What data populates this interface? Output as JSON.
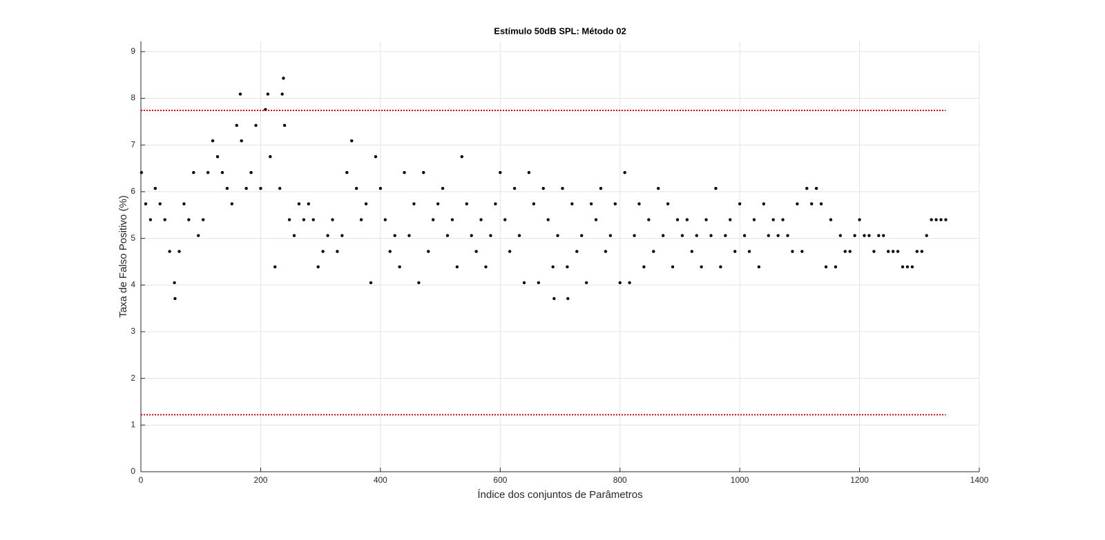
{
  "chart_data": {
    "type": "scatter",
    "title": "Estímulo 50dB SPL: Método 02",
    "xlabel": "Índice dos conjuntos de Parâmetros",
    "ylabel": "Taxa de Falso Positivo (%)",
    "xlim": [
      0,
      1400
    ],
    "ylim": [
      0,
      9.22
    ],
    "xticks": [
      0,
      200,
      400,
      600,
      800,
      1000,
      1200,
      1400
    ],
    "yticks": [
      0,
      1,
      2,
      3,
      4,
      5,
      6,
      7,
      8,
      9
    ],
    "grid": true,
    "color": "#000000",
    "x": [
      1,
      8,
      16,
      24,
      32,
      40,
      48,
      56,
      57,
      64,
      72,
      80,
      88,
      96,
      104,
      112,
      120,
      128,
      136,
      144,
      152,
      160,
      166,
      168,
      176,
      184,
      192,
      200,
      208,
      212,
      216,
      224,
      232,
      236,
      238,
      240,
      248,
      256,
      264,
      272,
      280,
      288,
      296,
      304,
      312,
      320,
      328,
      336,
      344,
      352,
      360,
      368,
      376,
      384,
      392,
      400,
      408,
      416,
      424,
      432,
      440,
      448,
      456,
      464,
      472,
      480,
      488,
      496,
      504,
      512,
      520,
      528,
      536,
      544,
      552,
      560,
      568,
      576,
      584,
      592,
      600,
      608,
      616,
      624,
      632,
      640,
      648,
      656,
      664,
      672,
      680,
      688,
      690,
      696,
      704,
      712,
      713,
      720,
      728,
      736,
      744,
      752,
      760,
      768,
      776,
      784,
      792,
      800,
      808,
      816,
      824,
      832,
      840,
      848,
      856,
      864,
      872,
      880,
      888,
      896,
      904,
      912,
      920,
      928,
      936,
      944,
      952,
      960,
      968,
      976,
      984,
      992,
      1000,
      1008,
      1016,
      1024,
      1032,
      1040,
      1048,
      1056,
      1064,
      1072,
      1080,
      1088,
      1096,
      1104,
      1112,
      1120,
      1128,
      1136,
      1144,
      1152,
      1160,
      1168,
      1176,
      1184,
      1192,
      1200,
      1208,
      1216,
      1224,
      1232,
      1240,
      1248,
      1256,
      1264,
      1272,
      1280,
      1288,
      1296,
      1304,
      1312,
      1320,
      1328,
      1336,
      1344
    ],
    "values": [
      6.41,
      5.74,
      5.4,
      6.07,
      5.74,
      5.4,
      4.72,
      4.05,
      3.71,
      4.72,
      5.74,
      5.4,
      6.41,
      5.06,
      5.4,
      6.41,
      7.09,
      6.75,
      6.41,
      6.07,
      5.74,
      7.42,
      8.09,
      7.09,
      6.07,
      6.41,
      7.42,
      6.07,
      7.76,
      8.09,
      6.75,
      4.39,
      6.07,
      8.09,
      8.43,
      7.42,
      5.4,
      5.06,
      5.74,
      5.4,
      5.74,
      5.4,
      4.39,
      4.72,
      5.06,
      5.4,
      4.72,
      5.06,
      6.41,
      7.09,
      6.07,
      5.4,
      5.74,
      4.05,
      6.75,
      6.07,
      5.4,
      4.72,
      5.06,
      4.39,
      6.41,
      5.06,
      5.74,
      4.05,
      6.41,
      4.72,
      5.4,
      5.74,
      6.07,
      5.06,
      5.4,
      4.39,
      6.75,
      5.74,
      5.06,
      4.72,
      5.4,
      4.39,
      5.06,
      5.74,
      6.41,
      5.4,
      4.72,
      6.07,
      5.06,
      4.05,
      6.41,
      5.74,
      4.05,
      6.07,
      5.4,
      4.39,
      3.71,
      5.06,
      6.07,
      4.39,
      3.71,
      5.74,
      4.72,
      5.06,
      4.05,
      5.74,
      5.4,
      6.07,
      4.72,
      5.06,
      5.74,
      4.05,
      6.41,
      4.05,
      5.06,
      5.74,
      4.39,
      5.4,
      4.72,
      6.07,
      5.06,
      5.74,
      4.39,
      5.4,
      5.06,
      5.4,
      4.72,
      5.06,
      4.39,
      5.4,
      5.06,
      6.07,
      4.39,
      5.06,
      5.4,
      4.72,
      5.74,
      5.06,
      4.72,
      5.4,
      4.39,
      5.74,
      5.06,
      5.4,
      5.06,
      5.4,
      5.06,
      4.72,
      5.74,
      4.72,
      6.07,
      5.74,
      6.07,
      5.74,
      4.39,
      5.4,
      4.39,
      5.06,
      4.72,
      4.72,
      5.06,
      5.4,
      5.06,
      5.06,
      4.72,
      5.06,
      5.06,
      4.72,
      4.72,
      4.72,
      4.39,
      4.39,
      4.39,
      4.72,
      4.72,
      5.06,
      5.4,
      5.4,
      5.4,
      5.4
    ],
    "lines": [
      {
        "x": [
          0,
          1344
        ],
        "values": [
          7.74,
          7.74
        ],
        "color": "#d40000",
        "style": "dotted"
      },
      {
        "x": [
          0,
          1344
        ],
        "values": [
          1.22,
          1.22
        ],
        "color": "#d40000",
        "style": "dotted"
      }
    ]
  }
}
